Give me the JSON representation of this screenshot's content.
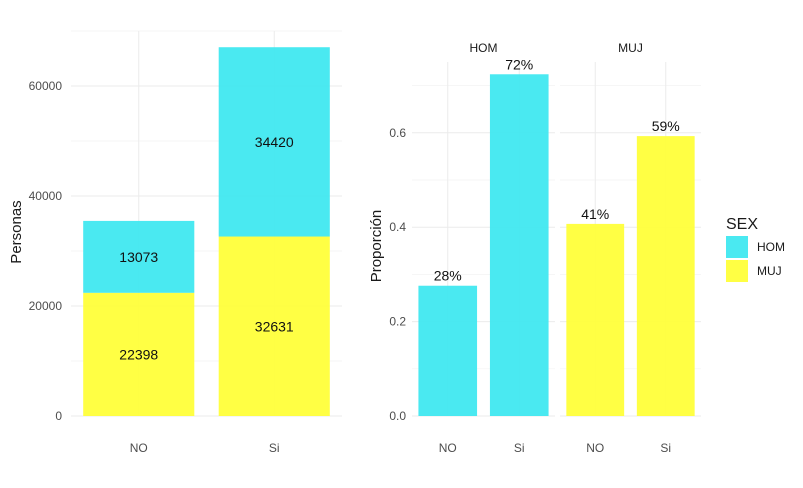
{
  "colors": {
    "HOM": "#40e8f0",
    "MUJ": "#ffff3a"
  },
  "legend": {
    "title": "SEX",
    "items": [
      "HOM",
      "MUJ"
    ]
  },
  "chart_data": [
    {
      "type": "bar",
      "stacked": true,
      "categories": [
        "NO",
        "Si"
      ],
      "series": [
        {
          "name": "MUJ",
          "values": [
            22398,
            32631
          ]
        },
        {
          "name": "HOM",
          "values": [
            13073,
            34420
          ]
        }
      ],
      "ylabel": "Personas",
      "xlabel": "",
      "ylim": [
        0,
        70000
      ],
      "yticks": [
        0,
        20000,
        40000,
        60000
      ],
      "ytick_labels": [
        "0",
        "20000",
        "40000",
        "60000"
      ],
      "bar_labels": {
        "MUJ": [
          "22398",
          "32631"
        ],
        "HOM": [
          "13073",
          "34420"
        ]
      }
    },
    {
      "type": "bar",
      "faceted": true,
      "ylabel": "Proporción",
      "xlabel": "",
      "ylim": [
        0,
        0.75
      ],
      "yticks": [
        0,
        0.2,
        0.4,
        0.6
      ],
      "ytick_labels": [
        "0.0",
        "0.2",
        "0.4",
        "0.6"
      ],
      "facets": [
        {
          "name": "HOM",
          "categories": [
            "NO",
            "Si"
          ],
          "values": [
            0.276,
            0.724
          ],
          "labels": [
            "28%",
            "72%"
          ]
        },
        {
          "name": "MUJ",
          "categories": [
            "NO",
            "Si"
          ],
          "values": [
            0.407,
            0.593
          ],
          "labels": [
            "41%",
            "59%"
          ]
        }
      ]
    }
  ]
}
